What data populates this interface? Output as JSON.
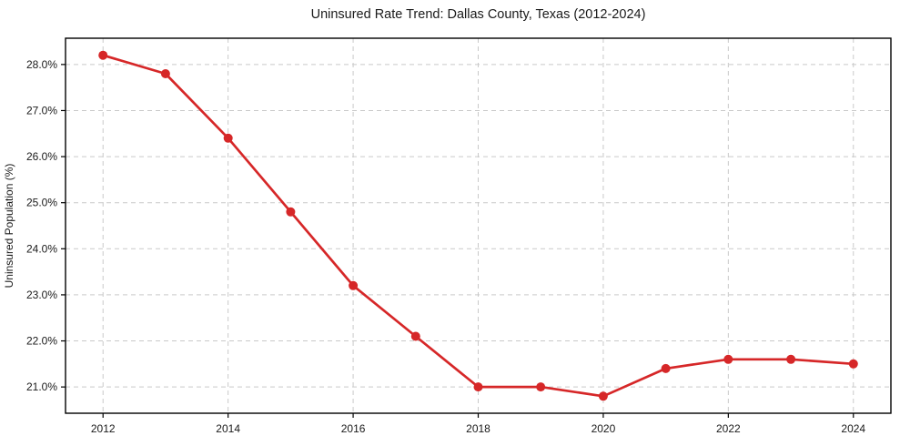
{
  "chart_data": {
    "type": "line",
    "title": "Uninsured Rate Trend: Dallas County, Texas (2012-2024)",
    "xlabel": "",
    "ylabel": "Uninsured Population (%)",
    "x": [
      2012,
      2013,
      2014,
      2015,
      2016,
      2017,
      2018,
      2019,
      2020,
      2021,
      2022,
      2023,
      2024
    ],
    "values": [
      28.2,
      27.8,
      26.4,
      24.8,
      23.2,
      22.1,
      21.0,
      21.0,
      20.8,
      21.4,
      21.6,
      21.6,
      21.5
    ],
    "xlim": [
      2011.4,
      2024.6
    ],
    "ylim": [
      20.43,
      28.57
    ],
    "x_ticks": [
      2012,
      2014,
      2016,
      2018,
      2020,
      2022,
      2024
    ],
    "x_tick_labels": [
      "2012",
      "2014",
      "2016",
      "2018",
      "2020",
      "2022",
      "2024"
    ],
    "y_ticks": [
      21,
      22,
      23,
      24,
      25,
      26,
      27,
      28
    ],
    "y_tick_labels": [
      "21.0%",
      "22.0%",
      "23.0%",
      "24.0%",
      "25.0%",
      "26.0%",
      "27.0%",
      "28.0%"
    ],
    "grid": {
      "visible": true,
      "style": "dashed",
      "color": "#c9c9c9"
    },
    "legend": {
      "visible": false
    },
    "marker": "circle",
    "colors": {
      "line": "#d62728",
      "marker": "#d62728",
      "text": "#1a1a1a",
      "spine": "#000000",
      "background": "#ffffff"
    }
  }
}
